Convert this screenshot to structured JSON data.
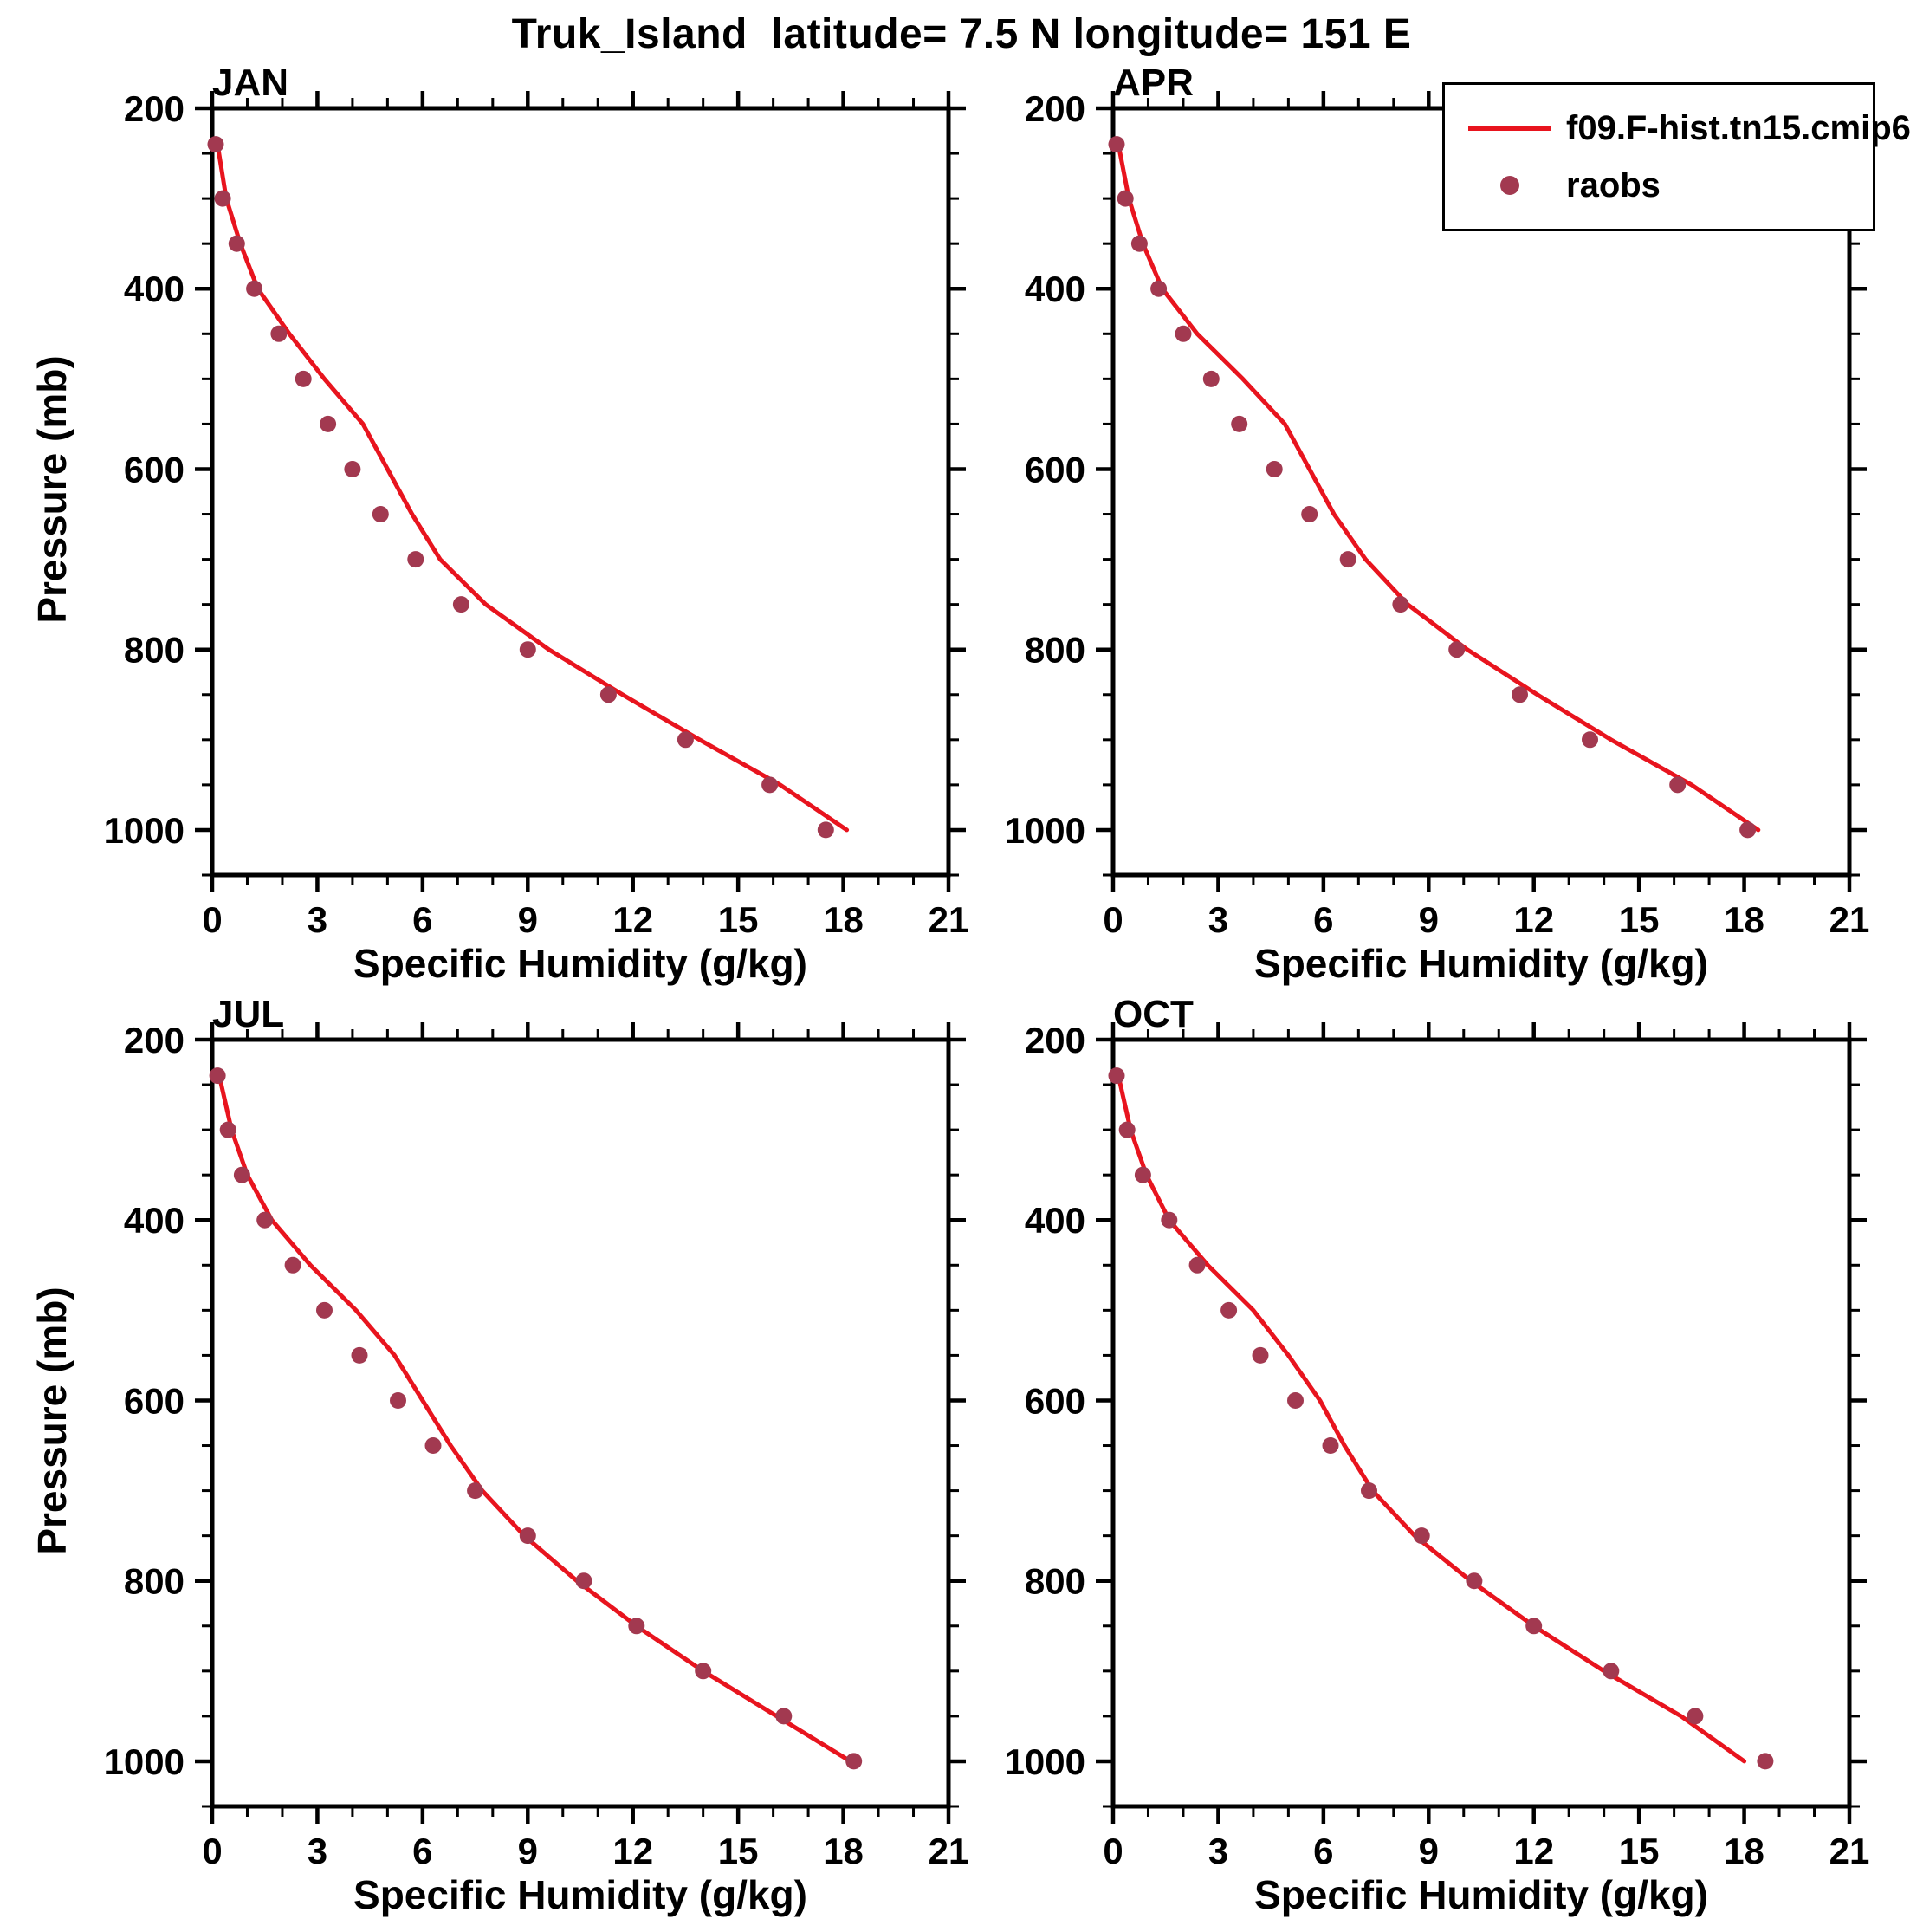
{
  "title": "Truk_Island  latitude= 7.5 N longitude= 151 E",
  "legend": {
    "model_label": "f09.F-hist.tn15.cmip6",
    "obs_label": "raobs"
  },
  "colors": {
    "model_line": "#e8141e",
    "raobs_dot": "#a23950",
    "axis": "#000000"
  },
  "chart_data": [
    {
      "type": "line",
      "panel": "JAN",
      "xlabel": "Specific Humidity (g/kg)",
      "ylabel": "Pressure (mb)",
      "xlim": [
        0,
        21
      ],
      "ylim": [
        200,
        1050
      ],
      "y_inverted": true,
      "grid": false,
      "legend_position": "top-right-of-APR-panel",
      "xticks": [
        0,
        3,
        6,
        9,
        12,
        15,
        18,
        21
      ],
      "yticks": [
        200,
        400,
        600,
        800,
        1000
      ],
      "x_minor_step": 1,
      "y_minor_step": 50,
      "pressure_mb": [
        240,
        300,
        350,
        400,
        450,
        500,
        550,
        600,
        650,
        700,
        750,
        800,
        850,
        900,
        950,
        1000
      ],
      "series": [
        {
          "name": "f09.F-hist.tn15.cmip6",
          "style": "line",
          "values": [
            0.15,
            0.4,
            0.8,
            1.3,
            2.2,
            3.2,
            4.3,
            5.0,
            5.7,
            6.5,
            7.8,
            9.6,
            11.7,
            13.9,
            16.2,
            18.1
          ]
        },
        {
          "name": "raobs",
          "style": "dots",
          "values": [
            0.1,
            0.3,
            0.7,
            1.2,
            1.9,
            2.6,
            3.3,
            4.0,
            4.8,
            5.8,
            7.1,
            9.0,
            11.3,
            13.5,
            15.9,
            17.5
          ]
        }
      ]
    },
    {
      "type": "line",
      "panel": "APR",
      "xlabel": "Specific Humidity (g/kg)",
      "ylabel": "Pressure (mb)",
      "xlim": [
        0,
        21
      ],
      "ylim": [
        200,
        1050
      ],
      "y_inverted": true,
      "grid": false,
      "xticks": [
        0,
        3,
        6,
        9,
        12,
        15,
        18,
        21
      ],
      "yticks": [
        200,
        400,
        600,
        800,
        1000
      ],
      "x_minor_step": 1,
      "y_minor_step": 50,
      "pressure_mb": [
        240,
        300,
        350,
        400,
        450,
        500,
        550,
        600,
        650,
        700,
        750,
        800,
        850,
        900,
        950,
        1000
      ],
      "series": [
        {
          "name": "f09.F-hist.tn15.cmip6",
          "style": "line",
          "values": [
            0.15,
            0.45,
            0.85,
            1.4,
            2.4,
            3.7,
            4.9,
            5.6,
            6.3,
            7.2,
            8.4,
            10.1,
            12.1,
            14.2,
            16.5,
            18.4
          ]
        },
        {
          "name": "raobs",
          "style": "dots",
          "values": [
            0.1,
            0.35,
            0.75,
            1.3,
            2.0,
            2.8,
            3.6,
            4.6,
            5.6,
            6.7,
            8.2,
            9.8,
            11.6,
            13.6,
            16.1,
            18.1
          ]
        }
      ]
    },
    {
      "type": "line",
      "panel": "JUL",
      "xlabel": "Specific Humidity (g/kg)",
      "ylabel": "Pressure (mb)",
      "xlim": [
        0,
        21
      ],
      "ylim": [
        200,
        1050
      ],
      "y_inverted": true,
      "grid": false,
      "xticks": [
        0,
        3,
        6,
        9,
        12,
        15,
        18,
        21
      ],
      "yticks": [
        200,
        400,
        600,
        800,
        1000
      ],
      "x_minor_step": 1,
      "y_minor_step": 50,
      "pressure_mb": [
        240,
        300,
        350,
        400,
        450,
        500,
        550,
        600,
        650,
        700,
        750,
        800,
        850,
        900,
        950,
        1000
      ],
      "series": [
        {
          "name": "f09.F-hist.tn15.cmip6",
          "style": "line",
          "values": [
            0.2,
            0.55,
            1.0,
            1.7,
            2.8,
            4.1,
            5.2,
            6.0,
            6.8,
            7.7,
            8.9,
            10.4,
            12.1,
            14.0,
            16.1,
            18.2
          ]
        },
        {
          "name": "raobs",
          "style": "dots",
          "values": [
            0.15,
            0.45,
            0.85,
            1.5,
            2.3,
            3.2,
            4.2,
            5.3,
            6.3,
            7.5,
            9.0,
            10.6,
            12.1,
            14.0,
            16.3,
            18.3
          ]
        }
      ]
    },
    {
      "type": "line",
      "panel": "OCT",
      "xlabel": "Specific Humidity (g/kg)",
      "ylabel": "Pressure (mb)",
      "xlim": [
        0,
        21
      ],
      "ylim": [
        200,
        1050
      ],
      "y_inverted": true,
      "grid": false,
      "xticks": [
        0,
        3,
        6,
        9,
        12,
        15,
        18,
        21
      ],
      "yticks": [
        200,
        400,
        600,
        800,
        1000
      ],
      "x_minor_step": 1,
      "y_minor_step": 50,
      "pressure_mb": [
        240,
        300,
        350,
        400,
        450,
        500,
        550,
        600,
        650,
        700,
        750,
        800,
        850,
        900,
        950,
        1000
      ],
      "series": [
        {
          "name": "f09.F-hist.tn15.cmip6",
          "style": "line",
          "values": [
            0.15,
            0.5,
            0.95,
            1.6,
            2.7,
            4.0,
            5.0,
            5.9,
            6.6,
            7.4,
            8.6,
            10.2,
            12.0,
            14.0,
            16.2,
            18.0
          ]
        },
        {
          "name": "raobs",
          "style": "dots",
          "values": [
            0.1,
            0.4,
            0.85,
            1.6,
            2.4,
            3.3,
            4.2,
            5.2,
            6.2,
            7.3,
            8.8,
            10.3,
            12.0,
            14.2,
            16.6,
            18.6
          ]
        }
      ]
    }
  ]
}
